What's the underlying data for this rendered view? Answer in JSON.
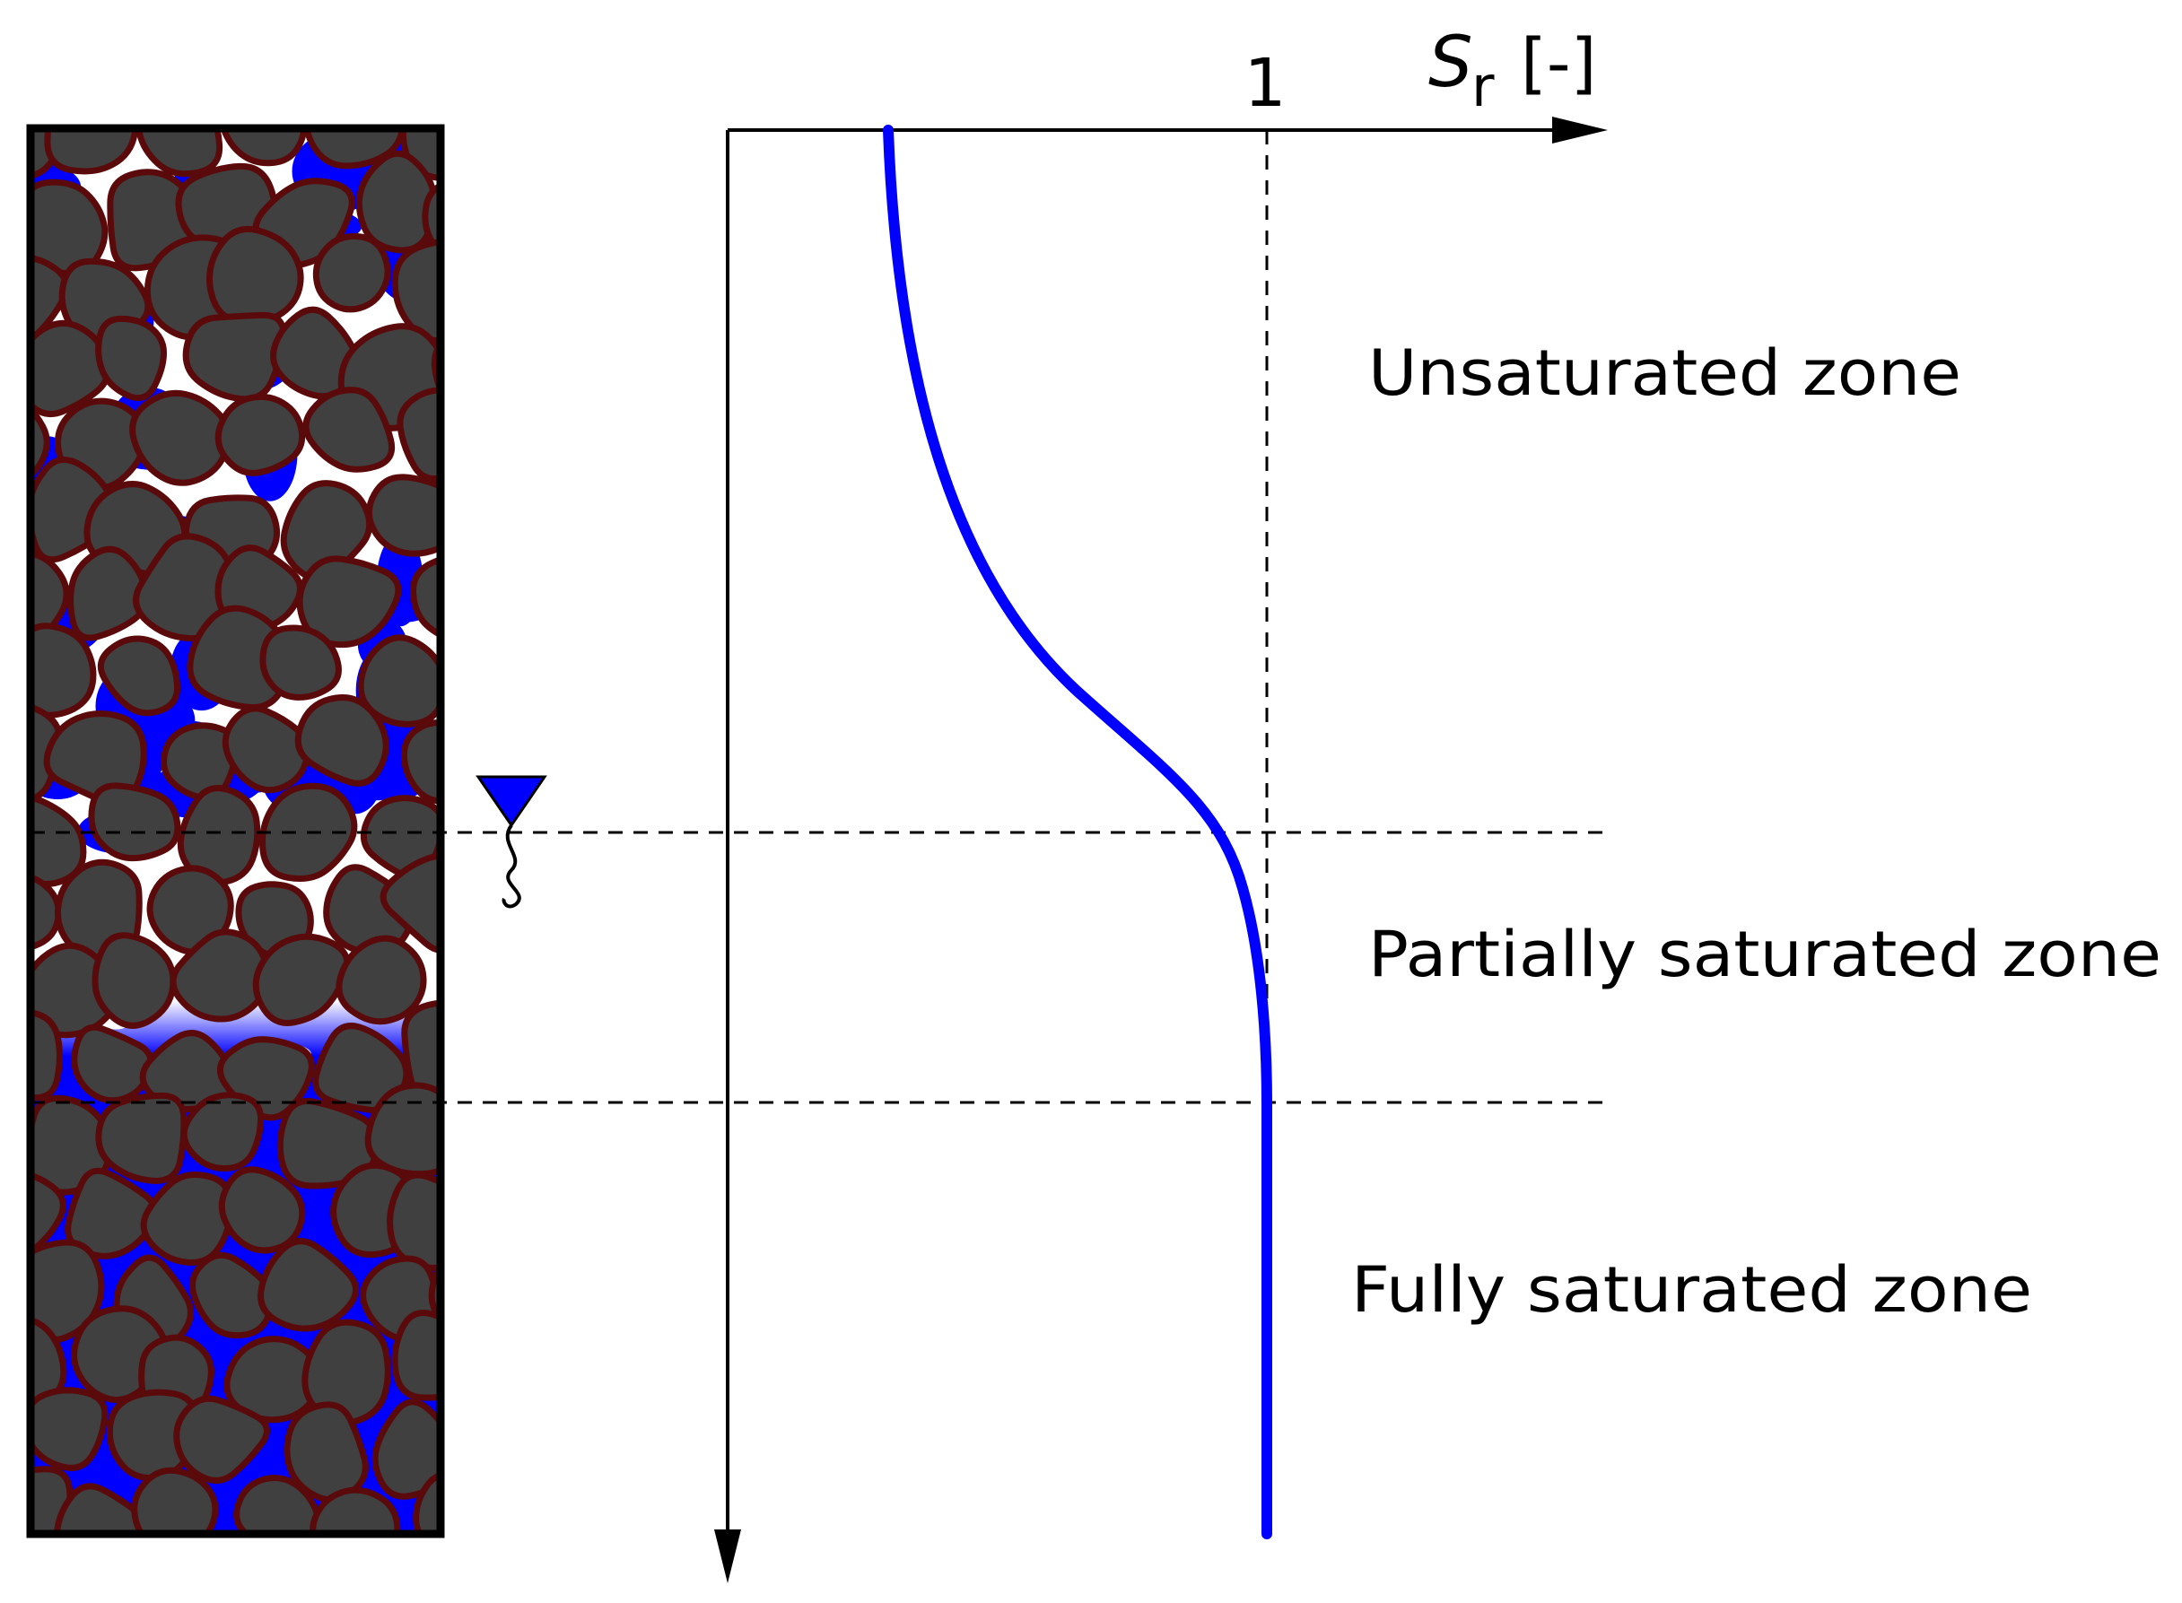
{
  "axis": {
    "symbol": "S",
    "subscript": "r",
    "unit": "[-]",
    "tick": "1"
  },
  "zones": [
    "Unsaturated zone",
    "Partially saturated zone",
    "Fully saturated zone"
  ]
}
